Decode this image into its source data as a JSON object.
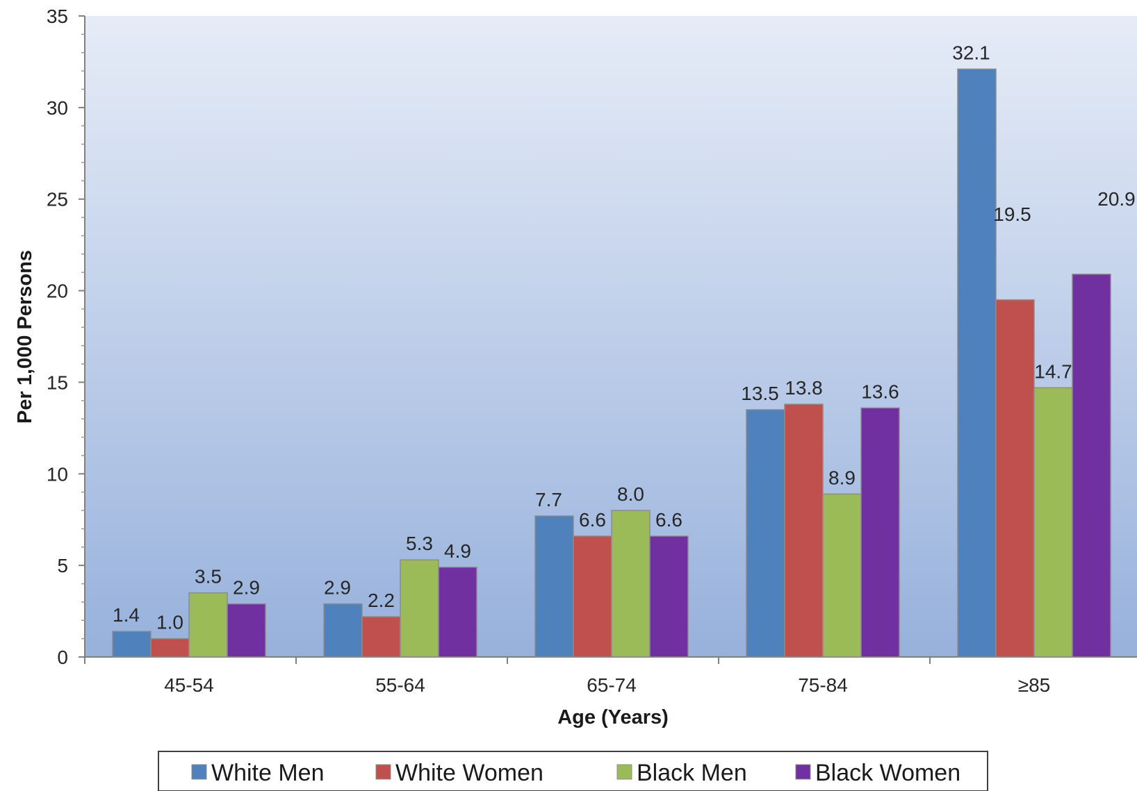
{
  "chart_data": {
    "type": "bar",
    "title": "",
    "xlabel": "Age (Years)",
    "ylabel": "Per 1,000 Persons",
    "ylim": [
      0,
      35
    ],
    "yticks": [
      0,
      5,
      10,
      15,
      20,
      25,
      30,
      35
    ],
    "ytick_labels": [
      "0",
      "5",
      "10",
      "15",
      "20",
      "25",
      "30",
      "35"
    ],
    "categories": [
      "45-54",
      "55-64",
      "65-74",
      "75-84",
      "≥85"
    ],
    "series": [
      {
        "name": "White Men",
        "color": "#4f81bd",
        "values": [
          1.4,
          2.9,
          7.7,
          13.5,
          32.1
        ],
        "labels": [
          "1.4",
          "2.9",
          "7.7",
          "13.5",
          "32.1"
        ]
      },
      {
        "name": "White Women",
        "color": "#c0504d",
        "values": [
          1.0,
          2.2,
          6.6,
          13.8,
          19.5
        ],
        "labels": [
          "1.0",
          "2.2",
          "6.6",
          "13.8",
          "19.5"
        ]
      },
      {
        "name": "Black Men",
        "color": "#9bbb59",
        "values": [
          3.5,
          5.3,
          8.0,
          8.9,
          14.7
        ],
        "labels": [
          "3.5",
          "5.3",
          "8.0",
          "8.9",
          "14.7"
        ]
      },
      {
        "name": "Black Women",
        "color": "#7030a0",
        "values": [
          2.9,
          4.9,
          6.6,
          13.6,
          20.9
        ],
        "labels": [
          "2.9",
          "4.9",
          "6.6",
          "13.6",
          "20.9"
        ]
      }
    ],
    "grid": false,
    "legend_position": "bottom",
    "background": "gradient"
  }
}
